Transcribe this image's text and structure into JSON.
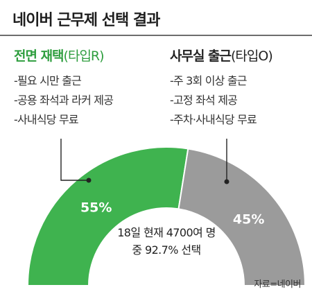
{
  "title": "네이버 근무제 선택 결과",
  "options": [
    {
      "name_strong": "전면 재택",
      "name_sub": "(타입R)",
      "color": "#3fb34f",
      "items": [
        "-필요 시만 출근",
        "-공용 좌석과 라커 제공",
        "-사내식당 무료"
      ]
    },
    {
      "name_strong": "사무실 출근",
      "name_sub": "(타입O)",
      "color": "#9b9b9b",
      "items": [
        "-주 3회 이상 출근",
        "-고정 좌석 제공",
        "-주차·사내식당 무료"
      ]
    }
  ],
  "chart_data": {
    "type": "pie",
    "style": "half-donut",
    "categories": [
      "전면 재택(타입R)",
      "사무실 출근(타입O)"
    ],
    "values": [
      55,
      45
    ],
    "labels": [
      "55%",
      "45%"
    ],
    "colors": [
      "#3fb34f",
      "#9b9b9b"
    ],
    "center_text": [
      "18일 현재 4700여 명",
      "중 92.7% 선택"
    ]
  },
  "source": "자료=네이버"
}
